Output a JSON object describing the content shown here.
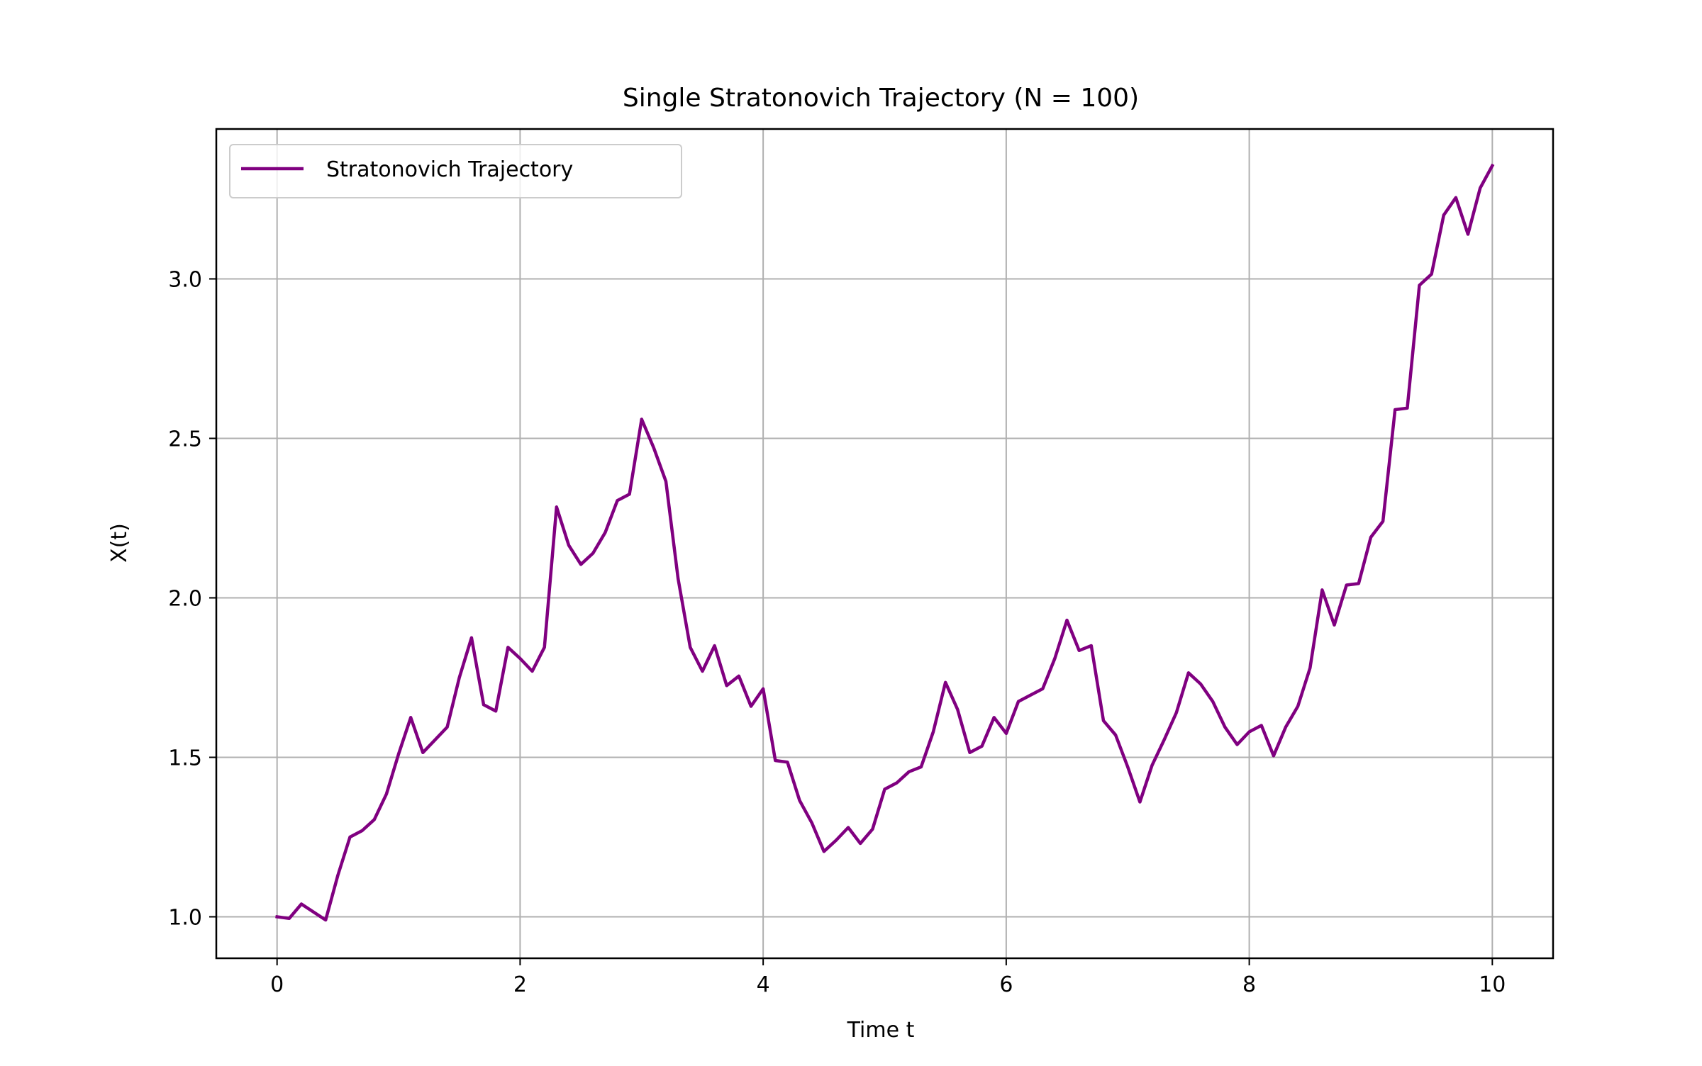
{
  "chart_data": {
    "type": "line",
    "title": "Single Stratonovich Trajectory (N = 100)",
    "xlabel": "Time t",
    "ylabel": "X(t)",
    "xlim": [
      -0.5,
      10.5
    ],
    "ylim": [
      0.87,
      3.47
    ],
    "xticks": [
      0,
      2,
      4,
      6,
      8,
      10
    ],
    "xtick_labels": [
      "0",
      "2",
      "4",
      "6",
      "8",
      "10"
    ],
    "yticks": [
      1.0,
      1.5,
      2.0,
      2.5,
      3.0
    ],
    "ytick_labels": [
      "1.0",
      "1.5",
      "2.0",
      "2.5",
      "3.0"
    ],
    "grid": true,
    "legend_position": "upper left",
    "series": [
      {
        "name": "Stratonovich Trajectory",
        "color": "#800080",
        "x": [
          0.0,
          0.1,
          0.2,
          0.3,
          0.4,
          0.5,
          0.6,
          0.7,
          0.8,
          0.9,
          1.0,
          1.1,
          1.2,
          1.3,
          1.4,
          1.5,
          1.6,
          1.7,
          1.8,
          1.9,
          2.0,
          2.1,
          2.2,
          2.3,
          2.4,
          2.5,
          2.6,
          2.7,
          2.8,
          2.9,
          3.0,
          3.1,
          3.2,
          3.3,
          3.4,
          3.5,
          3.6,
          3.7,
          3.8,
          3.9,
          4.0,
          4.1,
          4.2,
          4.3,
          4.4,
          4.5,
          4.6,
          4.7,
          4.8,
          4.9,
          5.0,
          5.1,
          5.2,
          5.3,
          5.4,
          5.5,
          5.6,
          5.7,
          5.8,
          5.9,
          6.0,
          6.1,
          6.2,
          6.3,
          6.4,
          6.5,
          6.6,
          6.7,
          6.8,
          6.9,
          7.0,
          7.1,
          7.2,
          7.3,
          7.4,
          7.5,
          7.6,
          7.7,
          7.8,
          7.9,
          8.0,
          8.1,
          8.2,
          8.3,
          8.4,
          8.5,
          8.6,
          8.7,
          8.8,
          8.9,
          9.0,
          9.1,
          9.2,
          9.3,
          9.4,
          9.5,
          9.6,
          9.7,
          9.8,
          9.9,
          10.0
        ],
        "y": [
          1.0,
          0.995,
          1.04,
          1.015,
          0.99,
          1.13,
          1.25,
          1.27,
          1.305,
          1.385,
          1.51,
          1.625,
          1.515,
          1.555,
          1.595,
          1.75,
          1.875,
          1.665,
          1.645,
          1.845,
          1.81,
          1.77,
          1.845,
          2.285,
          2.165,
          2.105,
          2.14,
          2.205,
          2.305,
          2.325,
          2.56,
          2.47,
          2.365,
          2.06,
          1.845,
          1.77,
          1.85,
          1.725,
          1.755,
          1.66,
          1.715,
          1.49,
          1.485,
          1.365,
          1.295,
          1.205,
          1.24,
          1.28,
          1.23,
          1.275,
          1.4,
          1.42,
          1.455,
          1.47,
          1.58,
          1.735,
          1.65,
          1.515,
          1.535,
          1.625,
          1.575,
          1.675,
          1.695,
          1.715,
          1.81,
          1.93,
          1.835,
          1.85,
          1.615,
          1.57,
          1.47,
          1.36,
          1.475,
          1.555,
          1.64,
          1.765,
          1.73,
          1.675,
          1.595,
          1.54,
          1.58,
          1.6,
          1.505,
          1.595,
          1.66,
          1.78,
          2.025,
          1.915,
          2.04,
          2.045,
          2.19,
          2.24,
          2.59,
          2.595,
          2.98,
          3.015,
          3.2,
          3.255,
          3.14,
          3.285,
          3.355
        ]
      }
    ]
  }
}
